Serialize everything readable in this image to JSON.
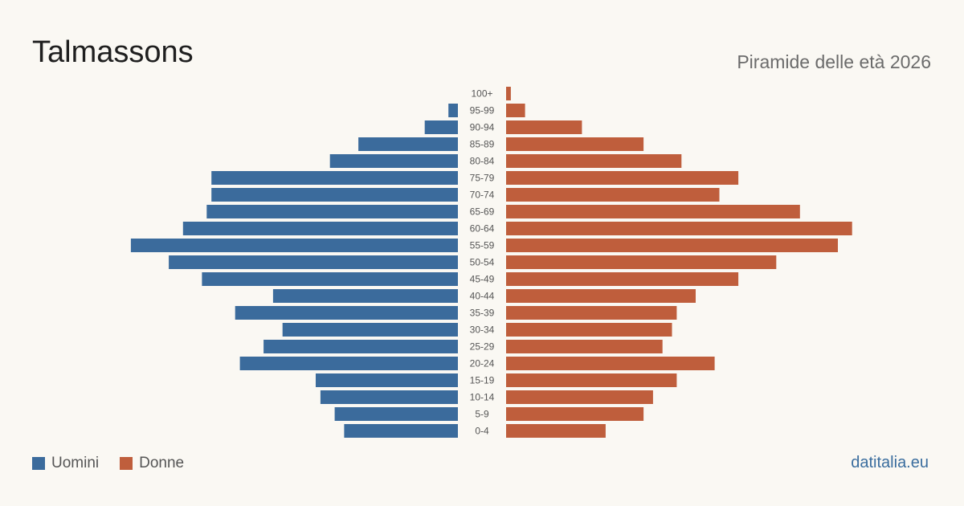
{
  "title": "Talmassons",
  "subtitle": "Piramide delle età 2026",
  "source": "datitalia.eu",
  "colors": {
    "male": "#3b6b9c",
    "female": "#bf5e3c",
    "background": "#faf8f3"
  },
  "chart_data": {
    "type": "bar",
    "orientation": "horizontal-pyramid",
    "categories": [
      "100+",
      "95-99",
      "90-94",
      "85-89",
      "80-84",
      "75-79",
      "70-74",
      "65-69",
      "60-64",
      "55-59",
      "50-54",
      "45-49",
      "40-44",
      "35-39",
      "30-34",
      "25-29",
      "20-24",
      "15-19",
      "10-14",
      "5-9",
      "0-4"
    ],
    "series": [
      {
        "name": "Uomini",
        "values": [
          0,
          2,
          7,
          21,
          27,
          52,
          52,
          53,
          58,
          69,
          61,
          54,
          39,
          47,
          37,
          41,
          46,
          30,
          29,
          26,
          24
        ]
      },
      {
        "name": "Donne",
        "values": [
          1,
          4,
          16,
          29,
          37,
          49,
          45,
          62,
          73,
          70,
          57,
          49,
          40,
          36,
          35,
          33,
          44,
          36,
          31,
          29,
          21
        ]
      }
    ],
    "xlabel": "",
    "ylabel": "",
    "legend_position": "bottom-left"
  }
}
